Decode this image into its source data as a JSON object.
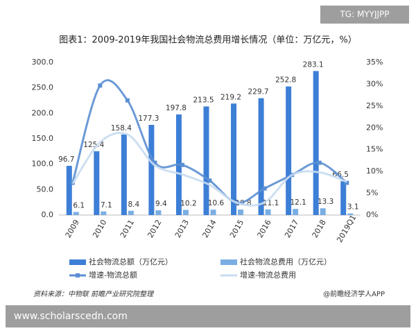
{
  "watermark_top": "TG: MYYJJPP",
  "watermark_bottom": "www.scholarscedn.com",
  "chart_data": {
    "type": "combo",
    "title": "图表1：2009-2019年我国社会物流总费用增长情况（单位：万亿元，%）",
    "categories": [
      "2009",
      "2010",
      "2011",
      "2012",
      "2013",
      "2014",
      "2015",
      "2016",
      "2017",
      "2018",
      "2019Q1"
    ],
    "series": [
      {
        "name": "社会物流总额（万亿元）",
        "type": "bar",
        "color": "#3d7fd6",
        "values": [
          96.7,
          125.4,
          158.4,
          177.3,
          197.8,
          213.5,
          219.2,
          229.7,
          252.8,
          283.1,
          66.5
        ]
      },
      {
        "name": "社会物流总费用（万亿元）",
        "type": "bar",
        "color": "#7aaee3",
        "values": [
          6.1,
          7.1,
          8.4,
          9.4,
          10.2,
          10.6,
          10.8,
          11.1,
          12.1,
          13.3,
          3.1
        ]
      },
      {
        "name": "增速-物流总额",
        "type": "line",
        "axis": "y2",
        "color": "#5b8fd3",
        "values": [
          7.4,
          29.7,
          26.3,
          12.0,
          11.5,
          7.9,
          2.8,
          6.1,
          9.2,
          12.0,
          7.4
        ]
      },
      {
        "name": "增速-物流总费用",
        "type": "line",
        "axis": "y2",
        "color": "#c8dcf1",
        "values": [
          7.2,
          16.7,
          18.5,
          11.4,
          9.3,
          6.9,
          2.8,
          2.9,
          9.2,
          9.8,
          7.6
        ]
      }
    ],
    "ylim": [
      0,
      300
    ],
    "yticks": [
      {
        "value": 0,
        "label": "0.0"
      },
      {
        "value": 50,
        "label": "50.0"
      },
      {
        "value": 100,
        "label": "100.0"
      },
      {
        "value": 150,
        "label": "150.0"
      },
      {
        "value": 200,
        "label": "200.0"
      },
      {
        "value": 250,
        "label": "250.0"
      },
      {
        "value": 300,
        "label": "300.0"
      }
    ],
    "y2lim": [
      0,
      35
    ],
    "y2ticks": [
      {
        "value": 0,
        "label": "0%"
      },
      {
        "value": 5,
        "label": "5%"
      },
      {
        "value": 10,
        "label": "10%"
      },
      {
        "value": 15,
        "label": "15%"
      },
      {
        "value": 20,
        "label": "20%"
      },
      {
        "value": 25,
        "label": "25%"
      },
      {
        "value": 30,
        "label": "30%"
      },
      {
        "value": 35,
        "label": "35%"
      }
    ],
    "grid": false,
    "source": "资料来源：中物联 前瞻产业研究院整理",
    "credit": "@前瞻经济学人APP"
  }
}
